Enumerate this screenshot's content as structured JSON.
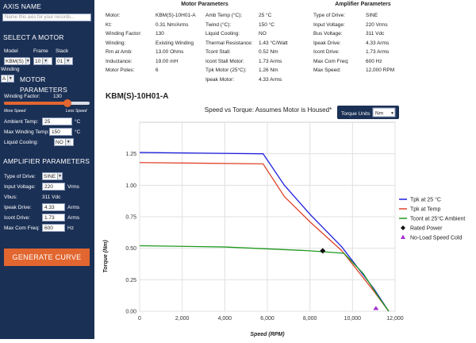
{
  "sidebar": {
    "axis_name_title": "AXIS NAME",
    "axis_name_placeholder": "Name this axis for your records...",
    "select_motor_title": "SELECT A MOTOR",
    "model_label": "Model",
    "frame_label": "Frame",
    "stack_label": "Stack",
    "model_value": "KBM(S)",
    "frame_value": "10",
    "stack_value": "01",
    "winding_label": "Winding",
    "winding_value": "A",
    "motor_params_title": "MOTOR PARAMETERS",
    "winding_factor_label": "Winding Factor:",
    "winding_factor_value": "130",
    "winding_factor_fraction": 0.74,
    "more_speed": "More Speed",
    "less_speed": "Less Speed",
    "ambient_temp_label": "Ambient Temp:",
    "ambient_temp_value": "25",
    "ambient_temp_unit": "°C",
    "max_winding_temp_label": "Max Winding Temp:",
    "max_winding_temp_value": "150",
    "max_winding_temp_unit": "°C",
    "liquid_cooling_label": "Liquid Cooling:",
    "liquid_cooling_value": "NO",
    "amp_params_title": "AMPLIFIER PARAMETERS",
    "type_of_drive_label": "Type of Drive:",
    "type_of_drive_value": "SINE",
    "input_voltage_label": "Input Voltage:",
    "input_voltage_value": "220",
    "input_voltage_unit": "Vrms",
    "vbus_label": "Vbus:",
    "vbus_value": "311 Vdc",
    "ipeak_drive_label": "Ipeak Drive:",
    "ipeak_drive_value": "4.33",
    "ipeak_drive_unit": "Arms",
    "icont_drive_label": "Icont Drive:",
    "icont_drive_value": "1.73",
    "icont_drive_unit": "Arms",
    "max_com_freq_label": "Max Com Freq:",
    "max_com_freq_value": "600",
    "max_com_freq_unit": "Hz",
    "generate_label": "GENERATE CURVE"
  },
  "motor_params": {
    "title": "Motor Parameters",
    "col1": [
      {
        "label": "Motor:",
        "value": "KBM(S)-10H01-A"
      },
      {
        "label": "Kt:",
        "value": "0.31 Nm/Arms"
      },
      {
        "label": "Winding Factor:",
        "value": "130"
      },
      {
        "label": "Winding:",
        "value": "Existing Winding"
      },
      {
        "label": "Rm at Amb:",
        "value": "13.00 Ohms"
      },
      {
        "label": "Inductance:",
        "value": "19.00 mH"
      },
      {
        "label": "Motor Poles:",
        "value": "6"
      }
    ],
    "col2": [
      {
        "label": "Amb Temp (°C):",
        "value": "25 °C"
      },
      {
        "label": "Twind (°C):",
        "value": "150 °C"
      },
      {
        "label": "Liquid Cooling:",
        "value": "NO"
      },
      {
        "label": "Thermal Resistance:",
        "value": "1.43 °C/Watt"
      },
      {
        "label": "Tcont Stall:",
        "value": "0.52 Nm"
      },
      {
        "label": "Icont Stall Motor:",
        "value": "1.73 Arms"
      },
      {
        "label": "Tpk Motor (25°C):",
        "value": "1.26 Nm"
      },
      {
        "label": "Ipeak Motor:",
        "value": "4.33 Arms"
      }
    ]
  },
  "amp_params": {
    "title": "Amplifier Parameters",
    "rows": [
      {
        "label": "Type of Drive:",
        "value": "SINE"
      },
      {
        "label": "Input Voltage:",
        "value": "220 Vrms"
      },
      {
        "label": "Bus Voltage:",
        "value": "311 Vdc"
      },
      {
        "label": "Ipeak Drive:",
        "value": "4.33 Arms"
      },
      {
        "label": "Icont Drive:",
        "value": "1.73 Arms"
      },
      {
        "label": "Max Com Freq:",
        "value": "600 Hz"
      },
      {
        "label": "Max Speed:",
        "value": "12,000 RPM"
      }
    ]
  },
  "chart_header": {
    "title": "KBM(S)-10H01-A",
    "torque_units_label": "Torque Units",
    "torque_units_value": "Nm"
  },
  "colors": {
    "sidebar_bg": "#1b3055",
    "accent_orange": "#e2662f",
    "series_blue": "#1f1fe0",
    "series_red": "#e0452a",
    "series_green": "#1f9a1f",
    "marker_purple": "#a030d0"
  },
  "chart_data": {
    "type": "line",
    "title": "Speed vs Torque: Assumes Motor is Housed*",
    "xlabel": "Speed (RPM)",
    "ylabel": "Torque (Nm)",
    "xlim": [
      0,
      12000
    ],
    "ylim": [
      0,
      1.5
    ],
    "xticks": [
      "0",
      "2,000",
      "4,000",
      "6,000",
      "8,000",
      "10,000",
      "12,000"
    ],
    "yticks": [
      "0.00",
      "0.25",
      "0.50",
      "0.75",
      "1.00",
      "1.25"
    ],
    "grid": true,
    "legend_position": "right",
    "series": [
      {
        "name": "Tpk at 25 °C",
        "x": [
          0,
          5800,
          6800,
          8000,
          9500,
          11000,
          11700
        ],
        "y": [
          1.26,
          1.25,
          1.0,
          0.77,
          0.51,
          0.18,
          0.0
        ]
      },
      {
        "name": "Tpk at Temp",
        "x": [
          0,
          5800,
          6800,
          8000,
          9500,
          11000,
          11700
        ],
        "y": [
          1.18,
          1.17,
          0.91,
          0.71,
          0.48,
          0.16,
          0.0
        ]
      },
      {
        "name": "Tcont at 25°C Ambient",
        "x": [
          0,
          4000,
          8000,
          9600,
          10500,
          11200,
          11700
        ],
        "y": [
          0.52,
          0.51,
          0.48,
          0.46,
          0.3,
          0.12,
          0.0
        ]
      }
    ],
    "points": [
      {
        "name": "Rated Power",
        "x": 8600,
        "y": 0.48,
        "marker": "diamond"
      },
      {
        "name": "No-Load Speed Cold",
        "x": 11100,
        "y": 0.01,
        "marker": "triangle"
      }
    ]
  }
}
